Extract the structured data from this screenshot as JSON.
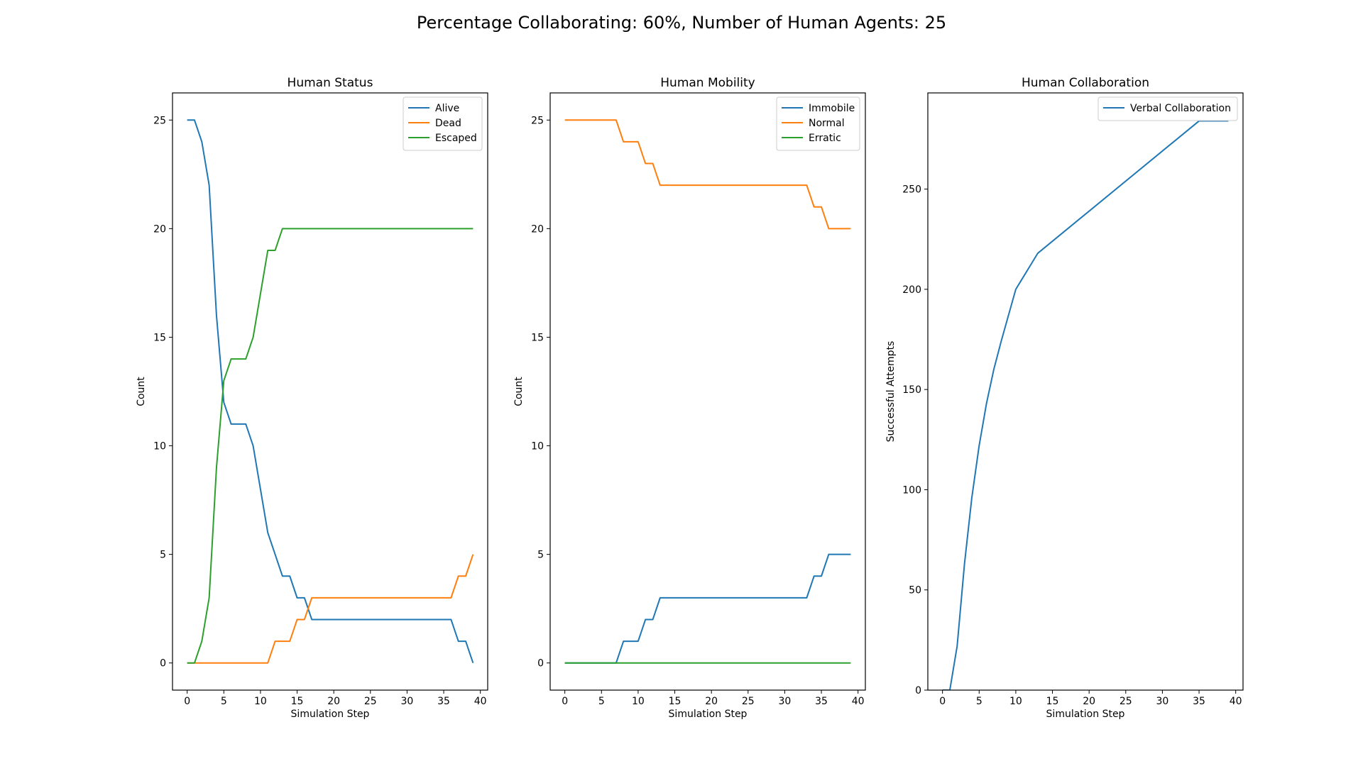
{
  "figure": {
    "title": "Percentage Collaborating: 60%, Number of Human Agents: 25"
  },
  "chart_data": [
    {
      "type": "line",
      "title": "Human Status",
      "xlabel": "Simulation Step",
      "ylabel": "Count",
      "xlim": [
        -2,
        41
      ],
      "ylim": [
        -1.25,
        26.25
      ],
      "xticks": [
        0,
        5,
        10,
        15,
        20,
        25,
        30,
        35,
        40
      ],
      "yticks": [
        0,
        5,
        10,
        15,
        20,
        25
      ],
      "legend_position": "top-right",
      "series": [
        {
          "name": "Alive",
          "color": "#1f77b4",
          "points": [
            [
              0,
              25
            ],
            [
              1,
              25
            ],
            [
              2,
              24
            ],
            [
              3,
              22
            ],
            [
              4,
              16
            ],
            [
              5,
              12
            ],
            [
              6,
              11
            ],
            [
              7,
              11
            ],
            [
              8,
              11
            ],
            [
              9,
              10
            ],
            [
              10,
              8
            ],
            [
              11,
              6
            ],
            [
              12,
              5
            ],
            [
              13,
              4
            ],
            [
              14,
              4
            ],
            [
              15,
              3
            ],
            [
              16,
              3
            ],
            [
              17,
              2
            ],
            [
              36,
              2
            ],
            [
              37,
              1
            ],
            [
              38,
              1
            ],
            [
              39,
              0
            ]
          ]
        },
        {
          "name": "Dead",
          "color": "#ff7f0e",
          "points": [
            [
              0,
              0
            ],
            [
              11,
              0
            ],
            [
              12,
              1
            ],
            [
              13,
              1
            ],
            [
              14,
              1
            ],
            [
              15,
              2
            ],
            [
              16,
              2
            ],
            [
              17,
              3
            ],
            [
              36,
              3
            ],
            [
              37,
              4
            ],
            [
              38,
              4
            ],
            [
              39,
              5
            ]
          ]
        },
        {
          "name": "Escaped",
          "color": "#2ca02c",
          "points": [
            [
              0,
              0
            ],
            [
              1,
              0
            ],
            [
              2,
              1
            ],
            [
              3,
              3
            ],
            [
              4,
              9
            ],
            [
              5,
              13
            ],
            [
              6,
              14
            ],
            [
              7,
              14
            ],
            [
              8,
              14
            ],
            [
              9,
              15
            ],
            [
              10,
              17
            ],
            [
              11,
              19
            ],
            [
              12,
              19
            ],
            [
              13,
              20
            ],
            [
              39,
              20
            ]
          ]
        }
      ]
    },
    {
      "type": "line",
      "title": "Human Mobility",
      "xlabel": "Simulation Step",
      "ylabel": "Count",
      "xlim": [
        -2,
        41
      ],
      "ylim": [
        -1.25,
        26.25
      ],
      "xticks": [
        0,
        5,
        10,
        15,
        20,
        25,
        30,
        35,
        40
      ],
      "yticks": [
        0,
        5,
        10,
        15,
        20,
        25
      ],
      "legend_position": "top-right",
      "series": [
        {
          "name": "Immobile",
          "color": "#1f77b4",
          "points": [
            [
              0,
              0
            ],
            [
              7,
              0
            ],
            [
              8,
              1
            ],
            [
              9,
              1
            ],
            [
              10,
              1
            ],
            [
              11,
              2
            ],
            [
              12,
              2
            ],
            [
              13,
              3
            ],
            [
              33,
              3
            ],
            [
              34,
              4
            ],
            [
              35,
              4
            ],
            [
              36,
              5
            ],
            [
              39,
              5
            ]
          ]
        },
        {
          "name": "Normal",
          "color": "#ff7f0e",
          "points": [
            [
              0,
              25
            ],
            [
              7,
              25
            ],
            [
              8,
              24
            ],
            [
              9,
              24
            ],
            [
              10,
              24
            ],
            [
              11,
              23
            ],
            [
              12,
              23
            ],
            [
              13,
              22
            ],
            [
              33,
              22
            ],
            [
              34,
              21
            ],
            [
              35,
              21
            ],
            [
              36,
              20
            ],
            [
              39,
              20
            ]
          ]
        },
        {
          "name": "Erratic",
          "color": "#2ca02c",
          "points": [
            [
              0,
              0
            ],
            [
              39,
              0
            ]
          ]
        }
      ]
    },
    {
      "type": "line",
      "title": "Human Collaboration",
      "xlabel": "Simulation Step",
      "ylabel": "Successful Attempts",
      "xlim": [
        -2,
        41
      ],
      "ylim": [
        0,
        298
      ],
      "xticks": [
        0,
        5,
        10,
        15,
        20,
        25,
        30,
        35,
        40
      ],
      "yticks": [
        0,
        50,
        100,
        150,
        200,
        250
      ],
      "legend_position": "top-right",
      "series": [
        {
          "name": "Verbal Collaboration",
          "color": "#1f77b4",
          "points": [
            [
              0,
              0
            ],
            [
              1,
              0
            ],
            [
              2,
              22
            ],
            [
              3,
              63
            ],
            [
              4,
              96
            ],
            [
              5,
              122
            ],
            [
              6,
              143
            ],
            [
              7,
              160
            ],
            [
              8,
              174
            ],
            [
              9,
              187
            ],
            [
              10,
              200
            ],
            [
              11,
              206
            ],
            [
              12,
              212
            ],
            [
              13,
              218
            ],
            [
              35,
              284
            ],
            [
              39,
              284
            ]
          ]
        }
      ]
    }
  ]
}
